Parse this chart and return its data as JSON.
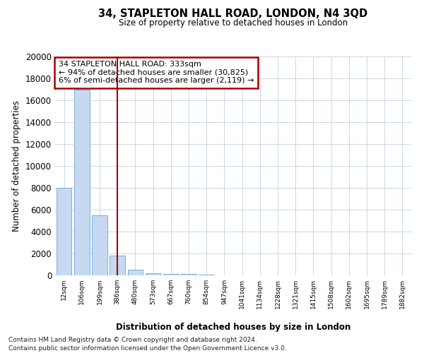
{
  "title": "34, STAPLETON HALL ROAD, LONDON, N4 3QD",
  "subtitle": "Size of property relative to detached houses in London",
  "xlabel": "Distribution of detached houses by size in London",
  "ylabel": "Number of detached properties",
  "footnote1": "Contains HM Land Registry data © Crown copyright and database right 2024.",
  "footnote2": "Contains public sector information licensed under the Open Government Licence v3.0.",
  "annotation_line1": "34 STAPLETON HALL ROAD: 333sqm",
  "annotation_line2": "← 94% of detached houses are smaller (30,825)",
  "annotation_line3": "6% of semi-detached houses are larger (2,119) →",
  "bar_color": "#c6d9f0",
  "bar_edge_color": "#7aadd4",
  "vline_color": "#aa0000",
  "annotation_edge_color": "#aa0000",
  "background_color": "#ffffff",
  "grid_color": "#c8d8e8",
  "ylim": [
    0,
    20000
  ],
  "vline_x": 3.0,
  "categories": [
    "12sqm",
    "106sqm",
    "199sqm",
    "386sqm",
    "480sqm",
    "573sqm",
    "667sqm",
    "760sqm",
    "854sqm",
    "947sqm",
    "1041sqm",
    "1134sqm",
    "1228sqm",
    "1321sqm",
    "1415sqm",
    "1508sqm",
    "1602sqm",
    "1695sqm",
    "1789sqm",
    "1882sqm"
  ],
  "values": [
    8000,
    17000,
    5500,
    1800,
    500,
    220,
    160,
    120,
    55,
    30,
    15,
    10,
    8,
    5,
    4,
    3,
    3,
    2,
    2,
    1
  ]
}
